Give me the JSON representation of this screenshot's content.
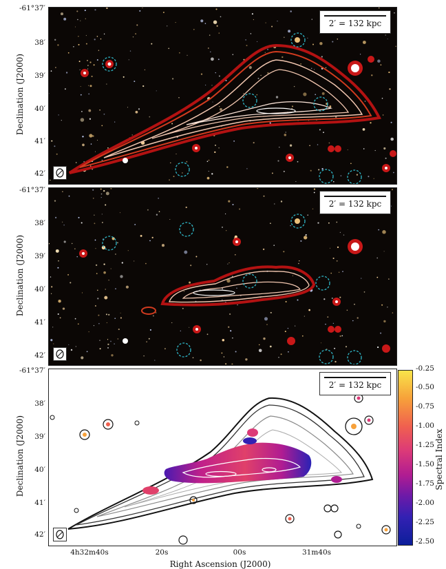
{
  "scalebar_label": "2′ = 132 kpc",
  "ylabel": "Declination (J2000)",
  "xlabel": "Right Ascension (J2000)",
  "dec_ticks": [
    "-61°37′",
    "38′",
    "39′",
    "40′",
    "41′",
    "42′"
  ],
  "ra_ticks": [
    "4h32m40s",
    "20s",
    "00s",
    "31m40s"
  ],
  "colorbar": {
    "label": "Spectral Index",
    "ticks": [
      "-0.25",
      "-0.50",
      "-0.75",
      "-1.00",
      "-1.25",
      "-1.50",
      "-1.75",
      "-2.00",
      "-2.25",
      "-2.50"
    ]
  },
  "colors": {
    "sky": "#0b0705",
    "contour_outer": "#b31212",
    "contour_inner": "#f2c7b0",
    "dashed_circle": "#2fb8c9",
    "grey_contour": "#888888"
  }
}
